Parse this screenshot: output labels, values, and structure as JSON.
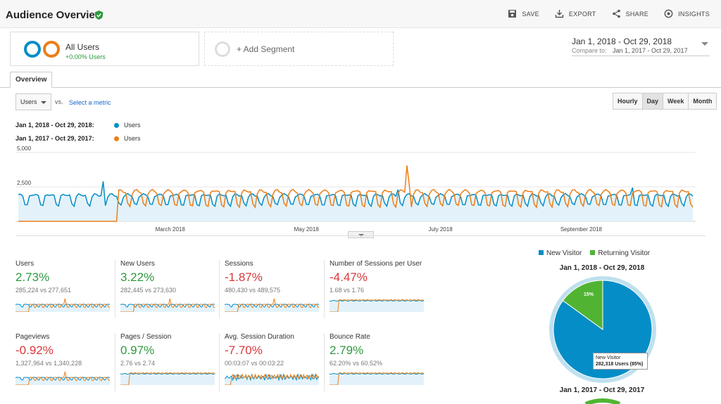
{
  "header": {
    "title": "Audience Overview",
    "actions": [
      {
        "label": "SAVE",
        "icon": "save-icon"
      },
      {
        "label": "EXPORT",
        "icon": "export-icon"
      },
      {
        "label": "SHARE",
        "icon": "share-icon"
      },
      {
        "label": "INSIGHTS",
        "icon": "insights-icon"
      }
    ]
  },
  "segments": {
    "all_users": {
      "name": "All Users",
      "pct": "+0.00% Users"
    },
    "add_label": "+ Add Segment"
  },
  "date_range": {
    "main": "Jan 1, 2018 - Oct 29, 2018",
    "compare_label": "Compare to:",
    "compare": "Jan 1, 2017 - Oct 29, 2017"
  },
  "tabs": {
    "overview": "Overview"
  },
  "controls": {
    "metric": "Users",
    "vs": "vs.",
    "select_metric": "Select a metric",
    "granularity": [
      {
        "label": "Hourly",
        "active": false
      },
      {
        "label": "Day",
        "active": true
      },
      {
        "label": "Week",
        "active": false
      },
      {
        "label": "Month",
        "active": false
      }
    ]
  },
  "legend": [
    {
      "range": "Jan 1, 2018 - Oct 29, 2018:",
      "series": "Users",
      "color": "#058dc7"
    },
    {
      "range": "Jan 1, 2017 - Oct 29, 2017:",
      "series": "Users",
      "color": "#ed7e17"
    }
  ],
  "chart_data": {
    "type": "line",
    "ylim": [
      0,
      5000
    ],
    "y_ticks": [
      "5,000",
      "2,500"
    ],
    "x_ticks": [
      "March 2018",
      "May 2018",
      "July 2018",
      "September 2018"
    ],
    "series": [
      {
        "name": "Users",
        "color": "#058dc7",
        "period": "Jan 1, 2018 - Oct 29, 2018",
        "weekday_level": 1950,
        "weekend_level": 900,
        "spikes": [
          {
            "day": 38,
            "value": 2900
          },
          {
            "day": 170,
            "value": 2300
          },
          {
            "day": 275,
            "value": 2450
          }
        ]
      },
      {
        "name": "Users",
        "color": "#ed7e17",
        "period": "Jan 1, 2017 - Oct 29, 2017",
        "start_day": 45,
        "weekday_level": 2250,
        "weekend_level": 700,
        "spikes": [
          {
            "day": 174,
            "value": 4050
          },
          {
            "day": 175,
            "value": 2700
          }
        ]
      }
    ]
  },
  "metrics": [
    {
      "label": "Users",
      "pct": "2.73%",
      "trend": "up",
      "compare": "285,224 vs 277,651",
      "shape": "weekly"
    },
    {
      "label": "New Users",
      "pct": "3.22%",
      "trend": "up",
      "compare": "282,445 vs 273,630",
      "shape": "weekly"
    },
    {
      "label": "Sessions",
      "pct": "-1.87%",
      "trend": "down",
      "compare": "480,430 vs 489,575",
      "shape": "weekly"
    },
    {
      "label": "Number of Sessions per User",
      "pct": "-4.47%",
      "trend": "down",
      "compare": "1.68 vs 1.76",
      "shape": "flat"
    },
    {
      "label": "Pageviews",
      "pct": "-0.92%",
      "trend": "down",
      "compare": "1,327,964 vs 1,340,228",
      "shape": "weekly"
    },
    {
      "label": "Pages / Session",
      "pct": "0.97%",
      "trend": "up",
      "compare": "2.76 vs 2.74",
      "shape": "flat"
    },
    {
      "label": "Avg. Session Duration",
      "pct": "-7.70%",
      "trend": "down",
      "compare": "00:03:07 vs 00:03:22",
      "shape": "noisy"
    },
    {
      "label": "Bounce Rate",
      "pct": "2.79%",
      "trend": "up",
      "compare": "62.20% vs 60.52%",
      "shape": "flat"
    }
  ],
  "pie": {
    "legend": [
      {
        "label": "New Visitor",
        "color": "#058dc7"
      },
      {
        "label": "Returning Visitor",
        "color": "#50b432"
      }
    ],
    "title_current": "Jan 1, 2018 - Oct 29, 2018",
    "title_previous": "Jan 1, 2017 - Oct 29, 2017",
    "slices": [
      {
        "label": "New Visitor",
        "percent": 85,
        "color": "#058dc7"
      },
      {
        "label": "Returning Visitor",
        "percent": 15,
        "color": "#50b432"
      }
    ],
    "slice_label": "15%",
    "tooltip": {
      "title": "New Visitor",
      "value": "282,318 Users (85%)"
    }
  }
}
